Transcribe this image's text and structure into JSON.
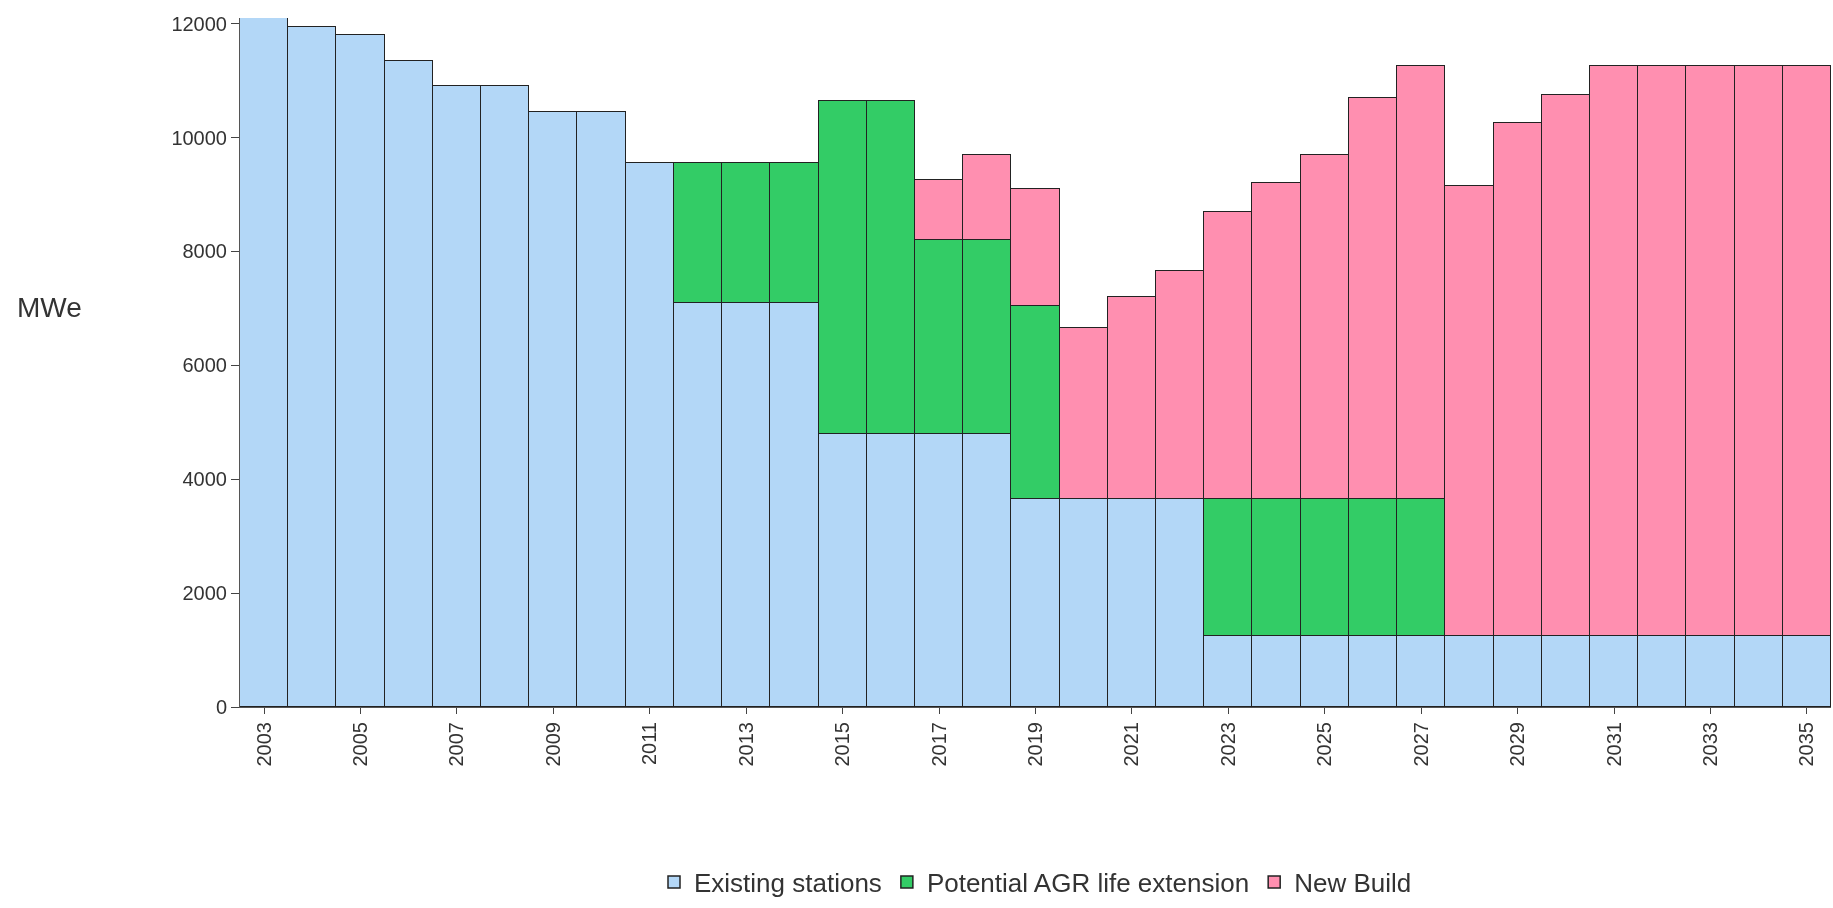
{
  "chart_data": {
    "type": "bar",
    "ylabel": "MWe",
    "stacked": true,
    "legend": "bottom",
    "grid": false,
    "categories": [
      "2003",
      null,
      "2005",
      null,
      "2007",
      null,
      "2009",
      null,
      "2011",
      null,
      "2013",
      null,
      "2015",
      null,
      "2017",
      null,
      "2019",
      null,
      "2021",
      null,
      "2023",
      null,
      "2025",
      null,
      "2027",
      null,
      "2029",
      null,
      "2031",
      null,
      "2033",
      null,
      "2035"
    ],
    "ylim": [
      0,
      12100
    ],
    "yticks": [
      0,
      2000,
      4000,
      6000,
      8000,
      10000,
      12000
    ],
    "series": [
      {
        "name": "Existing stations",
        "color": "#b3d7f7",
        "values": [
          12100,
          11950,
          11800,
          11350,
          10900,
          10900,
          10450,
          10450,
          9550,
          7100,
          7100,
          7100,
          4800,
          4800,
          4800,
          4800,
          3650,
          3650,
          3650,
          3650,
          1250,
          1250,
          1250,
          1250,
          1250,
          1250,
          1250,
          1250,
          1250,
          1250,
          1250,
          1250,
          1250
        ]
      },
      {
        "name": "Potential AGR life extension",
        "color": "#33cc66",
        "values": [
          null,
          null,
          null,
          null,
          null,
          null,
          null,
          null,
          null,
          2450,
          2450,
          2450,
          5850,
          5850,
          3400,
          3400,
          3400,
          null,
          null,
          null,
          2400,
          2400,
          2400,
          2400,
          2400,
          null,
          null,
          null,
          null,
          null,
          null,
          null,
          null
        ]
      },
      {
        "name": "New Build",
        "color": "#ff8fb0",
        "values": [
          null,
          null,
          null,
          null,
          null,
          null,
          null,
          null,
          null,
          null,
          null,
          null,
          null,
          null,
          1050,
          1500,
          2050,
          3000,
          3550,
          4000,
          5050,
          5550,
          6050,
          7050,
          7600,
          7900,
          9000,
          9500,
          10000,
          10000,
          10000,
          10000,
          10000
        ]
      }
    ]
  }
}
